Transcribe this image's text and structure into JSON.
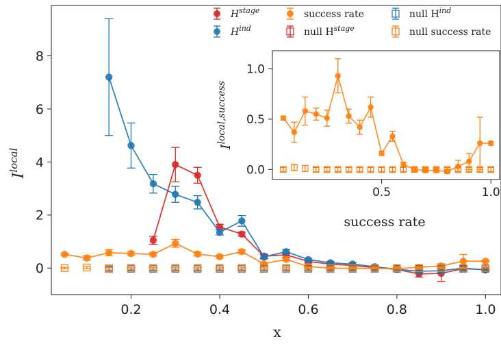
{
  "chart_data": [
    {
      "type": "line",
      "title": "",
      "xlabel": "x",
      "ylabel": "I",
      "ylabel_superscript": "local",
      "xlim": [
        0.02,
        1.035
      ],
      "ylim": [
        -1.0,
        9.9
      ],
      "xticks": [
        0.2,
        0.4,
        0.6,
        0.8,
        1.0
      ],
      "xtick_labels": [
        "0.2",
        "0.4",
        "0.6",
        "0.8",
        "1.0"
      ],
      "yticks": [
        0,
        2,
        4,
        6,
        8
      ],
      "ytick_labels": [
        "0",
        "2",
        "4",
        "6",
        "8"
      ],
      "grid": false,
      "legend_position": "top-right",
      "series": [
        {
          "name": "H",
          "name_superscript": "stage",
          "color": "#d62728",
          "marker": "circle",
          "null": false,
          "x": [
            0.25,
            0.3,
            0.35,
            0.4,
            0.45,
            0.5,
            0.55,
            0.6,
            0.65,
            0.7,
            0.75,
            0.8,
            0.85,
            0.9,
            0.95,
            1.0
          ],
          "y": [
            1.05,
            3.9,
            3.5,
            1.55,
            1.28,
            0.45,
            0.5,
            0.25,
            0.15,
            0.1,
            0.02,
            -0.05,
            -0.22,
            -0.2,
            -0.02,
            -0.06
          ],
          "err": [
            0.15,
            0.65,
            0.3,
            0.1,
            0.08,
            0.08,
            0.1,
            0.06,
            0.05,
            0.04,
            0.05,
            0.05,
            0.12,
            0.3,
            0.1,
            0.05
          ]
        },
        {
          "name": "H",
          "name_superscript": "ind",
          "color": "#1f77b4",
          "marker": "circle",
          "null": false,
          "x": [
            0.15,
            0.2,
            0.25,
            0.3,
            0.35,
            0.4,
            0.45,
            0.5,
            0.55,
            0.6,
            0.65,
            0.7,
            0.75,
            0.8,
            0.85,
            0.9,
            0.95,
            1.0
          ],
          "y": [
            7.2,
            4.62,
            3.18,
            2.78,
            2.48,
            1.35,
            1.78,
            0.42,
            0.62,
            0.32,
            0.2,
            0.15,
            0.05,
            -0.05,
            -0.12,
            -0.1,
            0.0,
            -0.07
          ],
          "err": [
            2.2,
            0.85,
            0.35,
            0.3,
            0.25,
            0.1,
            0.2,
            0.08,
            0.08,
            0.05,
            0.05,
            0.05,
            0.05,
            0.05,
            0.05,
            0.08,
            0.1,
            0.05
          ]
        },
        {
          "name": "success rate",
          "color": "#ff7f0e",
          "marker": "circle",
          "null": false,
          "x": [
            0.05,
            0.1,
            0.15,
            0.2,
            0.25,
            0.3,
            0.35,
            0.4,
            0.45,
            0.5,
            0.55,
            0.6,
            0.65,
            0.7,
            0.75,
            0.8,
            0.85,
            0.9,
            0.95,
            1.0
          ],
          "y": [
            0.52,
            0.38,
            0.58,
            0.55,
            0.52,
            0.93,
            0.53,
            0.43,
            0.62,
            0.16,
            0.33,
            0.06,
            0.0,
            -0.01,
            -0.01,
            -0.02,
            0.03,
            0.08,
            0.26,
            0.26
          ],
          "err": [
            0.04,
            0.08,
            0.12,
            0.06,
            0.06,
            0.15,
            0.07,
            0.06,
            0.07,
            0.03,
            0.05,
            0.02,
            0.02,
            0.02,
            0.02,
            0.03,
            0.05,
            0.08,
            0.25,
            0.03
          ]
        },
        {
          "name": "null H",
          "name_superscript": "stage",
          "color": "#d62728",
          "marker": "square-open",
          "null": true,
          "x": [
            0.15,
            0.2,
            0.25,
            0.3,
            0.35,
            0.4,
            0.45,
            0.5,
            0.55,
            0.6,
            0.65,
            0.7,
            0.75,
            0.8,
            0.85,
            0.9,
            0.95,
            1.0
          ],
          "y": [
            -0.02,
            -0.02,
            -0.02,
            -0.02,
            -0.02,
            -0.02,
            -0.02,
            -0.02,
            -0.02,
            -0.02,
            -0.02,
            -0.02,
            -0.02,
            -0.02,
            -0.02,
            -0.02,
            -0.02,
            -0.02
          ],
          "err": [
            0.08,
            0.06,
            0.06,
            0.06,
            0.06,
            0.06,
            0.06,
            0.06,
            0.06,
            0.06,
            0.06,
            0.06,
            0.06,
            0.06,
            0.06,
            0.06,
            0.06,
            0.06
          ]
        },
        {
          "name": "null H",
          "name_superscript": "ind",
          "color": "#1f77b4",
          "marker": "square-open",
          "null": true,
          "x": [
            0.15,
            0.2,
            0.25,
            0.3,
            0.35,
            0.4,
            0.45,
            0.5,
            0.55,
            0.6,
            0.65,
            0.7,
            0.75,
            0.8,
            0.85,
            0.9,
            0.95,
            1.0
          ],
          "y": [
            -0.02,
            -0.02,
            -0.02,
            -0.02,
            -0.02,
            -0.02,
            -0.02,
            -0.02,
            -0.02,
            -0.02,
            -0.02,
            -0.02,
            -0.02,
            -0.02,
            -0.02,
            -0.02,
            -0.02,
            -0.02
          ],
          "err": [
            0.08,
            0.06,
            0.06,
            0.06,
            0.06,
            0.06,
            0.06,
            0.06,
            0.06,
            0.06,
            0.06,
            0.06,
            0.06,
            0.06,
            0.06,
            0.06,
            0.06,
            0.06
          ]
        },
        {
          "name": "null success rate",
          "color": "#ff7f0e",
          "marker": "square-open",
          "null": true,
          "x": [
            0.05,
            0.1,
            0.15,
            0.2,
            0.25,
            0.3,
            0.35,
            0.4,
            0.45,
            0.5,
            0.55,
            0.6,
            0.65,
            0.7,
            0.75,
            0.8,
            0.85,
            0.9,
            0.95,
            1.0
          ],
          "y": [
            0.0,
            0.02,
            -0.01,
            0.0,
            0.0,
            0.0,
            0.0,
            0.0,
            0.0,
            0.0,
            0.0,
            0.0,
            0.0,
            0.0,
            0.0,
            0.0,
            0.0,
            0.0,
            0.0,
            0.0
          ],
          "err": [
            0.03,
            0.04,
            0.03,
            0.03,
            0.03,
            0.03,
            0.03,
            0.03,
            0.03,
            0.03,
            0.03,
            0.03,
            0.03,
            0.03,
            0.03,
            0.03,
            0.03,
            0.03,
            0.03,
            0.03
          ]
        }
      ]
    },
    {
      "type": "line",
      "title": "",
      "xlabel": "success rate",
      "ylabel": "I",
      "ylabel_superscript": "local,success",
      "xlim": [
        0.0,
        1.04
      ],
      "ylim": [
        -0.1,
        1.18
      ],
      "xticks": [
        0.5,
        1.0
      ],
      "xtick_labels": [
        "0.5",
        "1.0"
      ],
      "yticks": [
        0.0,
        0.5,
        1.0
      ],
      "ytick_labels": [
        "0.0",
        "0.5",
        "1.0"
      ],
      "grid": false,
      "series": [
        {
          "name": "",
          "color": "#ff7f0e",
          "marker": "circle",
          "null": false,
          "x": [
            0.05,
            0.1,
            0.15,
            0.2,
            0.25,
            0.3,
            0.35,
            0.4,
            0.45,
            0.5,
            0.55,
            0.6,
            0.65,
            0.7,
            0.75,
            0.8,
            0.85,
            0.9,
            0.95,
            1.0
          ],
          "y": [
            0.51,
            0.37,
            0.58,
            0.55,
            0.51,
            0.93,
            0.53,
            0.42,
            0.62,
            0.16,
            0.33,
            0.05,
            0.0,
            -0.01,
            -0.01,
            -0.02,
            0.03,
            0.08,
            0.26,
            0.26
          ],
          "err": [
            0.02,
            0.1,
            0.14,
            0.06,
            0.08,
            0.17,
            0.07,
            0.07,
            0.1,
            0.02,
            0.05,
            0.02,
            0.02,
            0.02,
            0.02,
            0.02,
            0.06,
            0.08,
            0.26,
            0.02
          ]
        },
        {
          "name": "",
          "color": "#ff7f0e",
          "marker": "square-open",
          "null": true,
          "x": [
            0.05,
            0.1,
            0.15,
            0.2,
            0.25,
            0.3,
            0.35,
            0.4,
            0.45,
            0.5,
            0.55,
            0.6,
            0.65,
            0.7,
            0.75,
            0.8,
            0.85,
            0.9,
            0.95,
            1.0
          ],
          "y": [
            0.0,
            0.02,
            0.01,
            0.0,
            0.0,
            0.0,
            0.0,
            0.0,
            0.0,
            0.0,
            0.0,
            0.0,
            0.0,
            0.0,
            0.0,
            0.0,
            0.0,
            0.0,
            0.0,
            0.0
          ],
          "err": [
            0.02,
            0.03,
            0.03,
            0.02,
            0.02,
            0.02,
            0.02,
            0.02,
            0.02,
            0.02,
            0.02,
            0.02,
            0.02,
            0.02,
            0.02,
            0.02,
            0.02,
            0.02,
            0.02,
            0.02
          ]
        }
      ]
    }
  ]
}
